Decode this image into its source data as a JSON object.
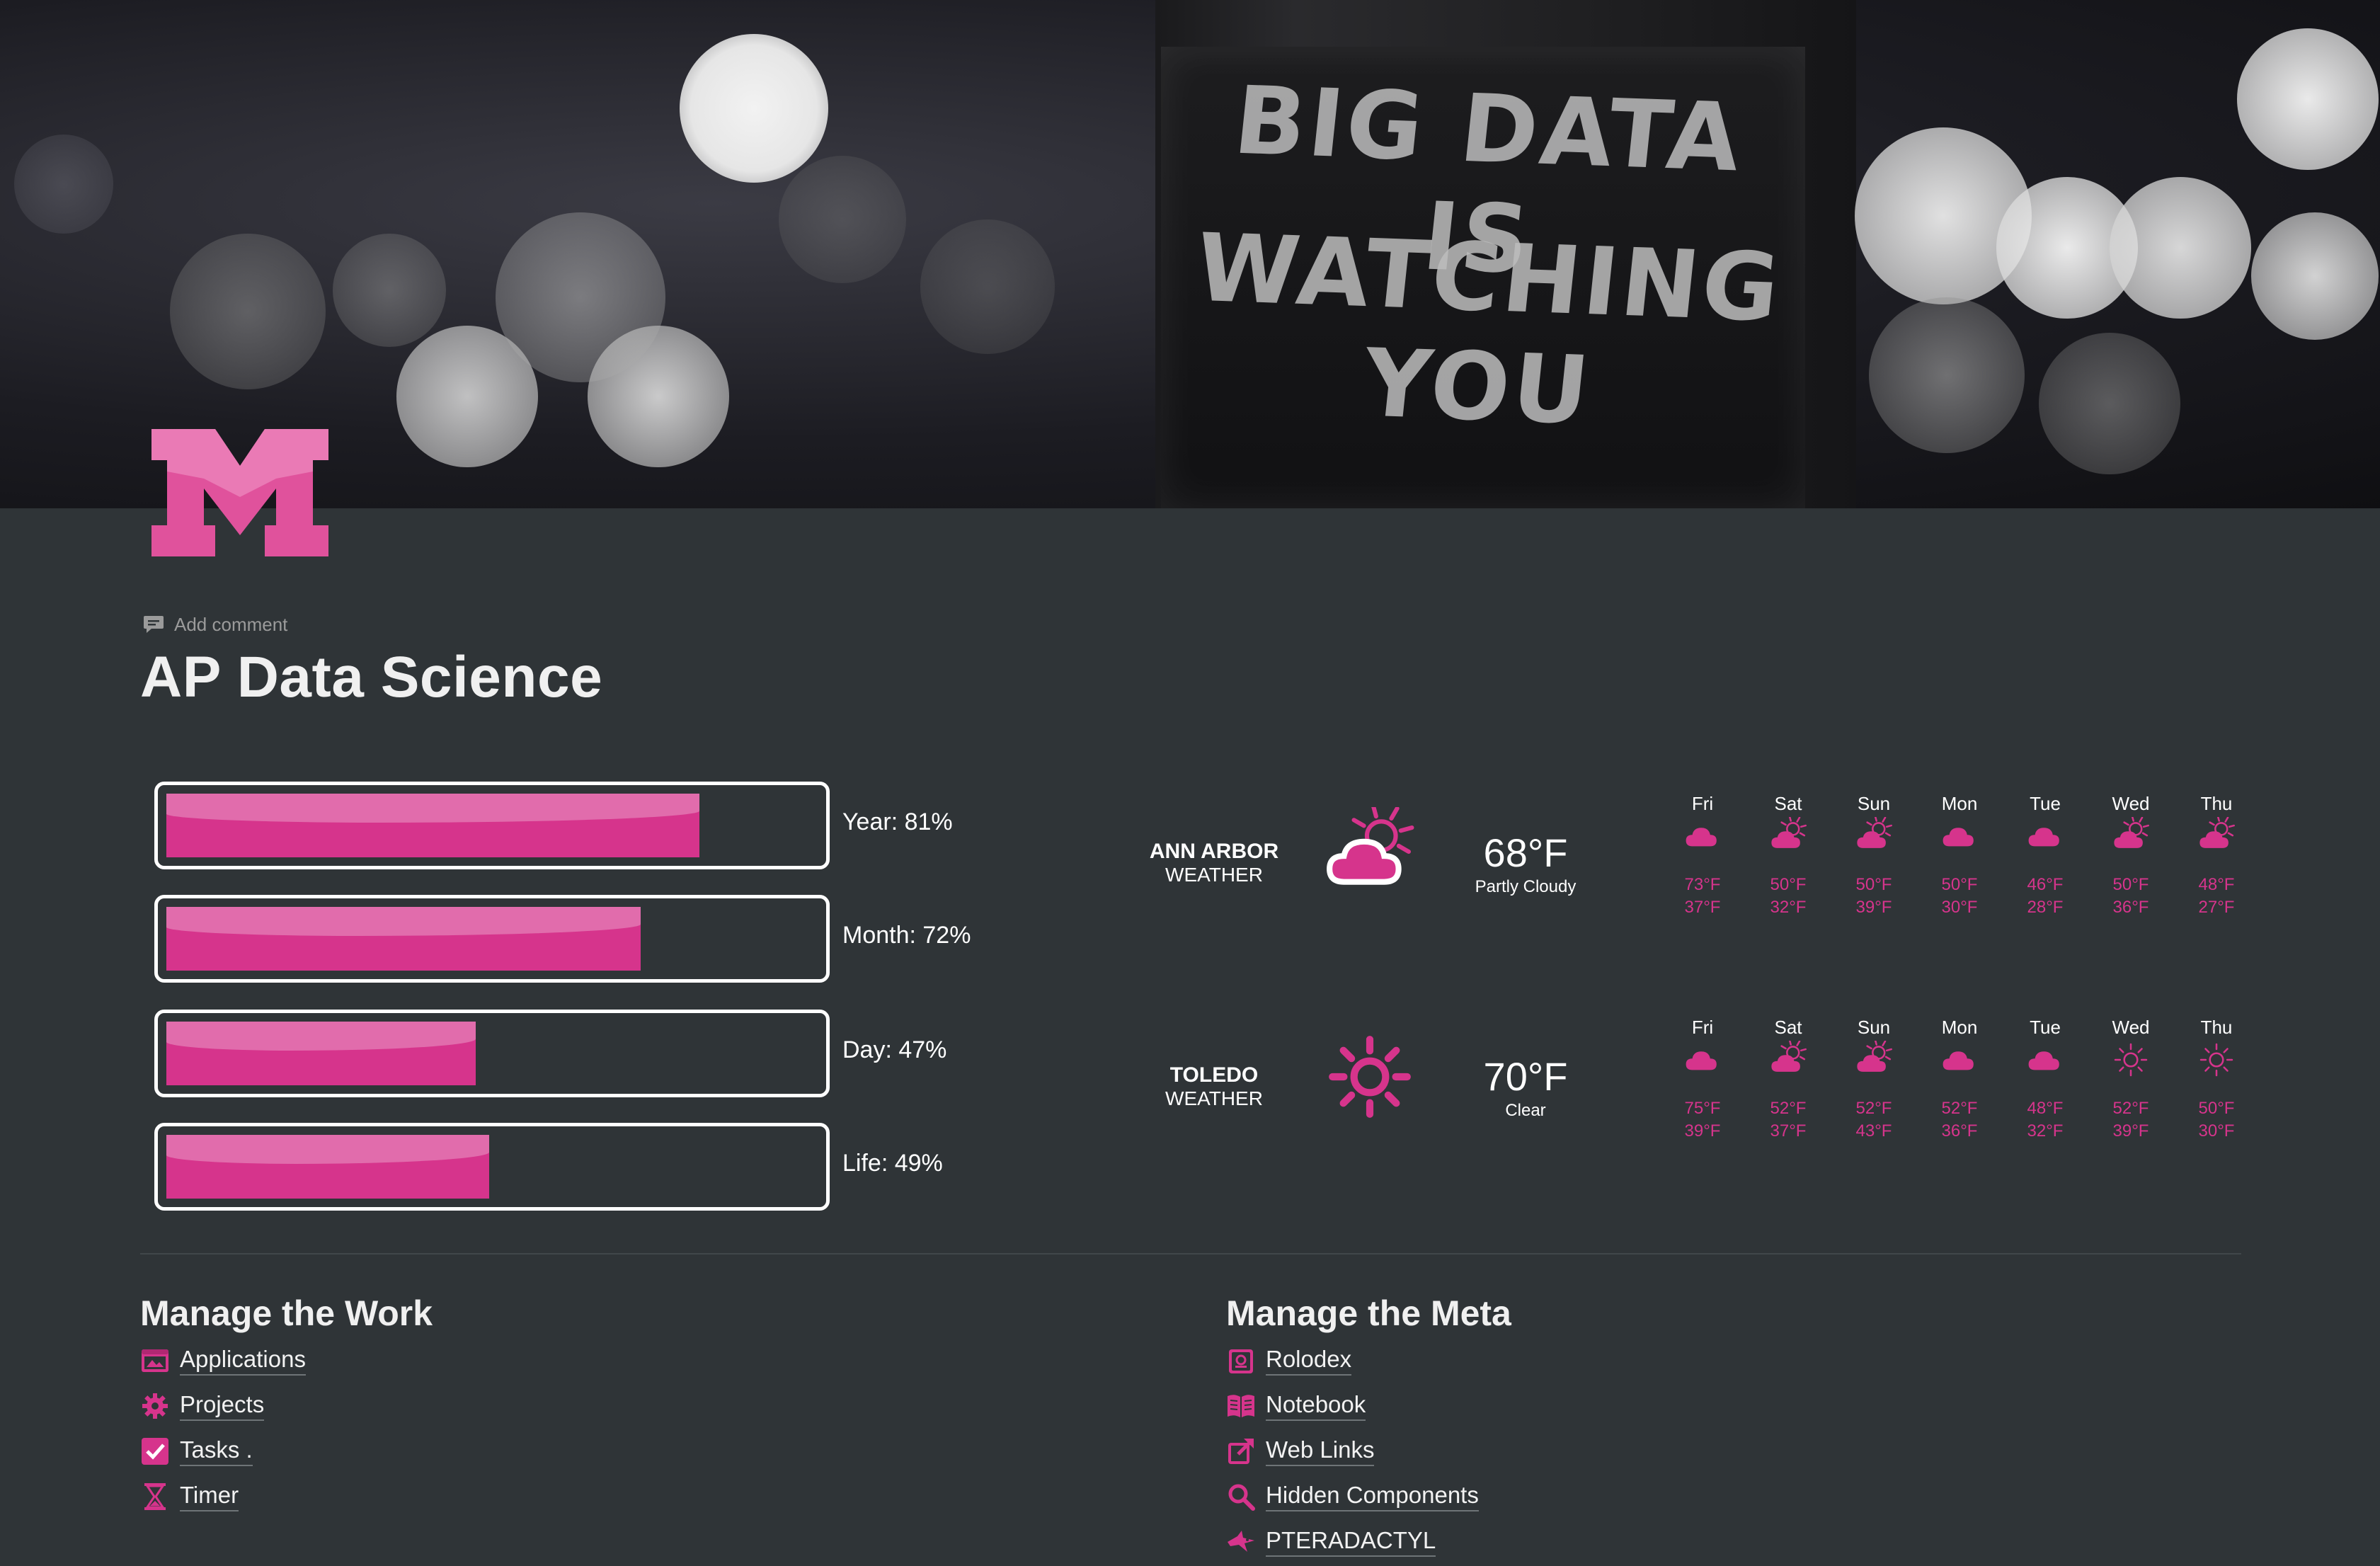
{
  "cover": {
    "sign_line1": "BIG DATA IS",
    "sign_line2": "WATCHING YOU"
  },
  "logo": {
    "letter": "M",
    "color": "#e0529c"
  },
  "header": {
    "add_comment": "Add comment",
    "title": "AP Data Science"
  },
  "progress": [
    {
      "label": "Year: 81%",
      "value": 81
    },
    {
      "label": "Month: 72%",
      "value": 72
    },
    {
      "label": "Day: 47%",
      "value": 47
    },
    {
      "label": "Life: 49%",
      "value": 49
    }
  ],
  "weather": [
    {
      "city": "ANN ARBOR",
      "sub": "WEATHER",
      "icon": "partly-cloudy-icon",
      "temp": "68°F",
      "condition": "Partly Cloudy",
      "forecast": [
        {
          "day": "Fri",
          "icon": "cloud-icon",
          "hi": "73°F",
          "lo": "37°F"
        },
        {
          "day": "Sat",
          "icon": "partly-cloudy-icon",
          "hi": "50°F",
          "lo": "32°F"
        },
        {
          "day": "Sun",
          "icon": "partly-cloudy-icon",
          "hi": "50°F",
          "lo": "39°F"
        },
        {
          "day": "Mon",
          "icon": "cloud-icon",
          "hi": "50°F",
          "lo": "30°F"
        },
        {
          "day": "Tue",
          "icon": "cloud-icon",
          "hi": "46°F",
          "lo": "28°F"
        },
        {
          "day": "Wed",
          "icon": "partly-cloudy-icon",
          "hi": "50°F",
          "lo": "36°F"
        },
        {
          "day": "Thu",
          "icon": "partly-cloudy-icon",
          "hi": "48°F",
          "lo": "27°F"
        }
      ]
    },
    {
      "city": "TOLEDO",
      "sub": "WEATHER",
      "icon": "sun-icon",
      "temp": "70°F",
      "condition": "Clear",
      "forecast": [
        {
          "day": "Fri",
          "icon": "cloud-icon",
          "hi": "75°F",
          "lo": "39°F"
        },
        {
          "day": "Sat",
          "icon": "partly-cloudy-icon",
          "hi": "52°F",
          "lo": "37°F"
        },
        {
          "day": "Sun",
          "icon": "partly-cloudy-icon",
          "hi": "52°F",
          "lo": "43°F"
        },
        {
          "day": "Mon",
          "icon": "cloud-icon",
          "hi": "52°F",
          "lo": "36°F"
        },
        {
          "day": "Tue",
          "icon": "cloud-icon",
          "hi": "48°F",
          "lo": "32°F"
        },
        {
          "day": "Wed",
          "icon": "sun-icon",
          "hi": "52°F",
          "lo": "39°F"
        },
        {
          "day": "Thu",
          "icon": "sun-icon",
          "hi": "50°F",
          "lo": "30°F"
        }
      ]
    }
  ],
  "work": {
    "heading": "Manage the Work",
    "items": [
      {
        "label": "Applications",
        "icon": "window-icon"
      },
      {
        "label": "Projects",
        "icon": "gear-icon"
      },
      {
        "label": "Tasks .",
        "icon": "checkbox-icon"
      },
      {
        "label": "Timer",
        "icon": "hourglass-icon"
      }
    ]
  },
  "meta": {
    "heading": "Manage the Meta",
    "items": [
      {
        "label": "Rolodex",
        "icon": "rolodex-icon"
      },
      {
        "label": "Notebook",
        "icon": "book-icon"
      },
      {
        "label": "Web Links",
        "icon": "external-link-icon"
      },
      {
        "label": "Hidden Components",
        "icon": "magnifier-icon"
      },
      {
        "label": "PTERADACTYL",
        "icon": "pterodactyl-icon"
      }
    ]
  },
  "colors": {
    "background": "#2f3437",
    "accent": "#d6348c",
    "accent_light": "#e0529c"
  }
}
